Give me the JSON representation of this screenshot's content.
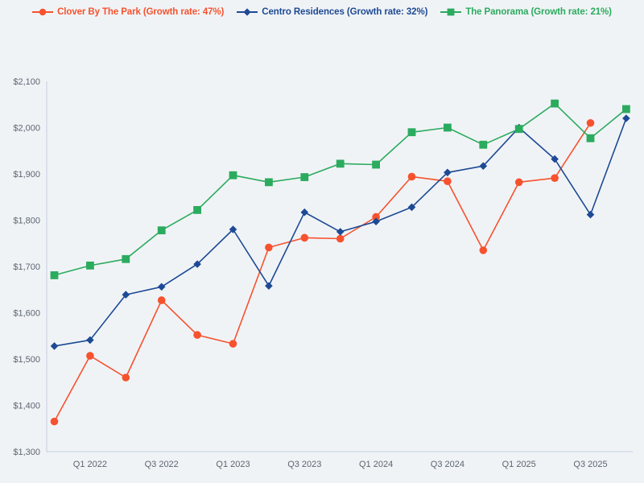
{
  "colors": {
    "background": "#F0F3F6",
    "axis_line": "#C5CDE0",
    "tick_text": "#5C6570"
  },
  "chart_data": {
    "type": "line",
    "title": "",
    "xlabel": "",
    "ylabel": "",
    "grid": false,
    "legend_position": "top",
    "ylim": [
      1300,
      2100
    ],
    "y_tick_step": 100,
    "y_prefix": "$",
    "y_tick_labels": [
      "$1,300",
      "$1,400",
      "$1,500",
      "$1,600",
      "$1,700",
      "$1,800",
      "$1,900",
      "$2,000",
      "$2,100"
    ],
    "categories": [
      "Q4 2021",
      "Q1 2022",
      "Q2 2022",
      "Q3 2022",
      "Q4 2022",
      "Q1 2023",
      "Q2 2023",
      "Q3 2023",
      "Q4 2023",
      "Q1 2024",
      "Q2 2024",
      "Q3 2024",
      "Q4 2024",
      "Q1 2025",
      "Q2 2025",
      "Q3 2025",
      "Q4 2025"
    ],
    "x_tick_labels": [
      "Q1 2022",
      "Q3 2022",
      "Q1 2023",
      "Q3 2023",
      "Q1 2024",
      "Q3 2024",
      "Q1 2025",
      "Q3 2025"
    ],
    "x_tick_indices": [
      1,
      3,
      5,
      7,
      9,
      11,
      13,
      15
    ],
    "series": [
      {
        "name": "Clover By The Park",
        "growth_rate": "47%",
        "legend_label": "Clover By The Park (Growth rate: 47%)",
        "color": "#F6522E",
        "marker": "circle",
        "values": [
          1365,
          1507,
          1460,
          1627,
          1552,
          1533,
          1741,
          1762,
          1760,
          1807,
          1894,
          1884,
          1735,
          1882,
          1891,
          2010,
          null
        ]
      },
      {
        "name": "Centro Residences",
        "growth_rate": "32%",
        "legend_label": "Centro Residences (Growth rate: 32%)",
        "color": "#1D4A94",
        "marker": "diamond",
        "values": [
          1528,
          1541,
          1639,
          1656,
          1705,
          1780,
          1658,
          1817,
          1775,
          1797,
          1828,
          1903,
          1917,
          2000,
          1932,
          1812,
          2020
        ]
      },
      {
        "name": "The Panorama",
        "growth_rate": "21%",
        "legend_label": "The Panorama (Growth rate: 21%)",
        "color": "#2BAB5E",
        "marker": "square",
        "values": [
          1681,
          1702,
          1716,
          1778,
          1822,
          1897,
          1882,
          1893,
          1922,
          1920,
          1990,
          2000,
          1963,
          1997,
          2052,
          1977,
          2040
        ]
      }
    ]
  }
}
